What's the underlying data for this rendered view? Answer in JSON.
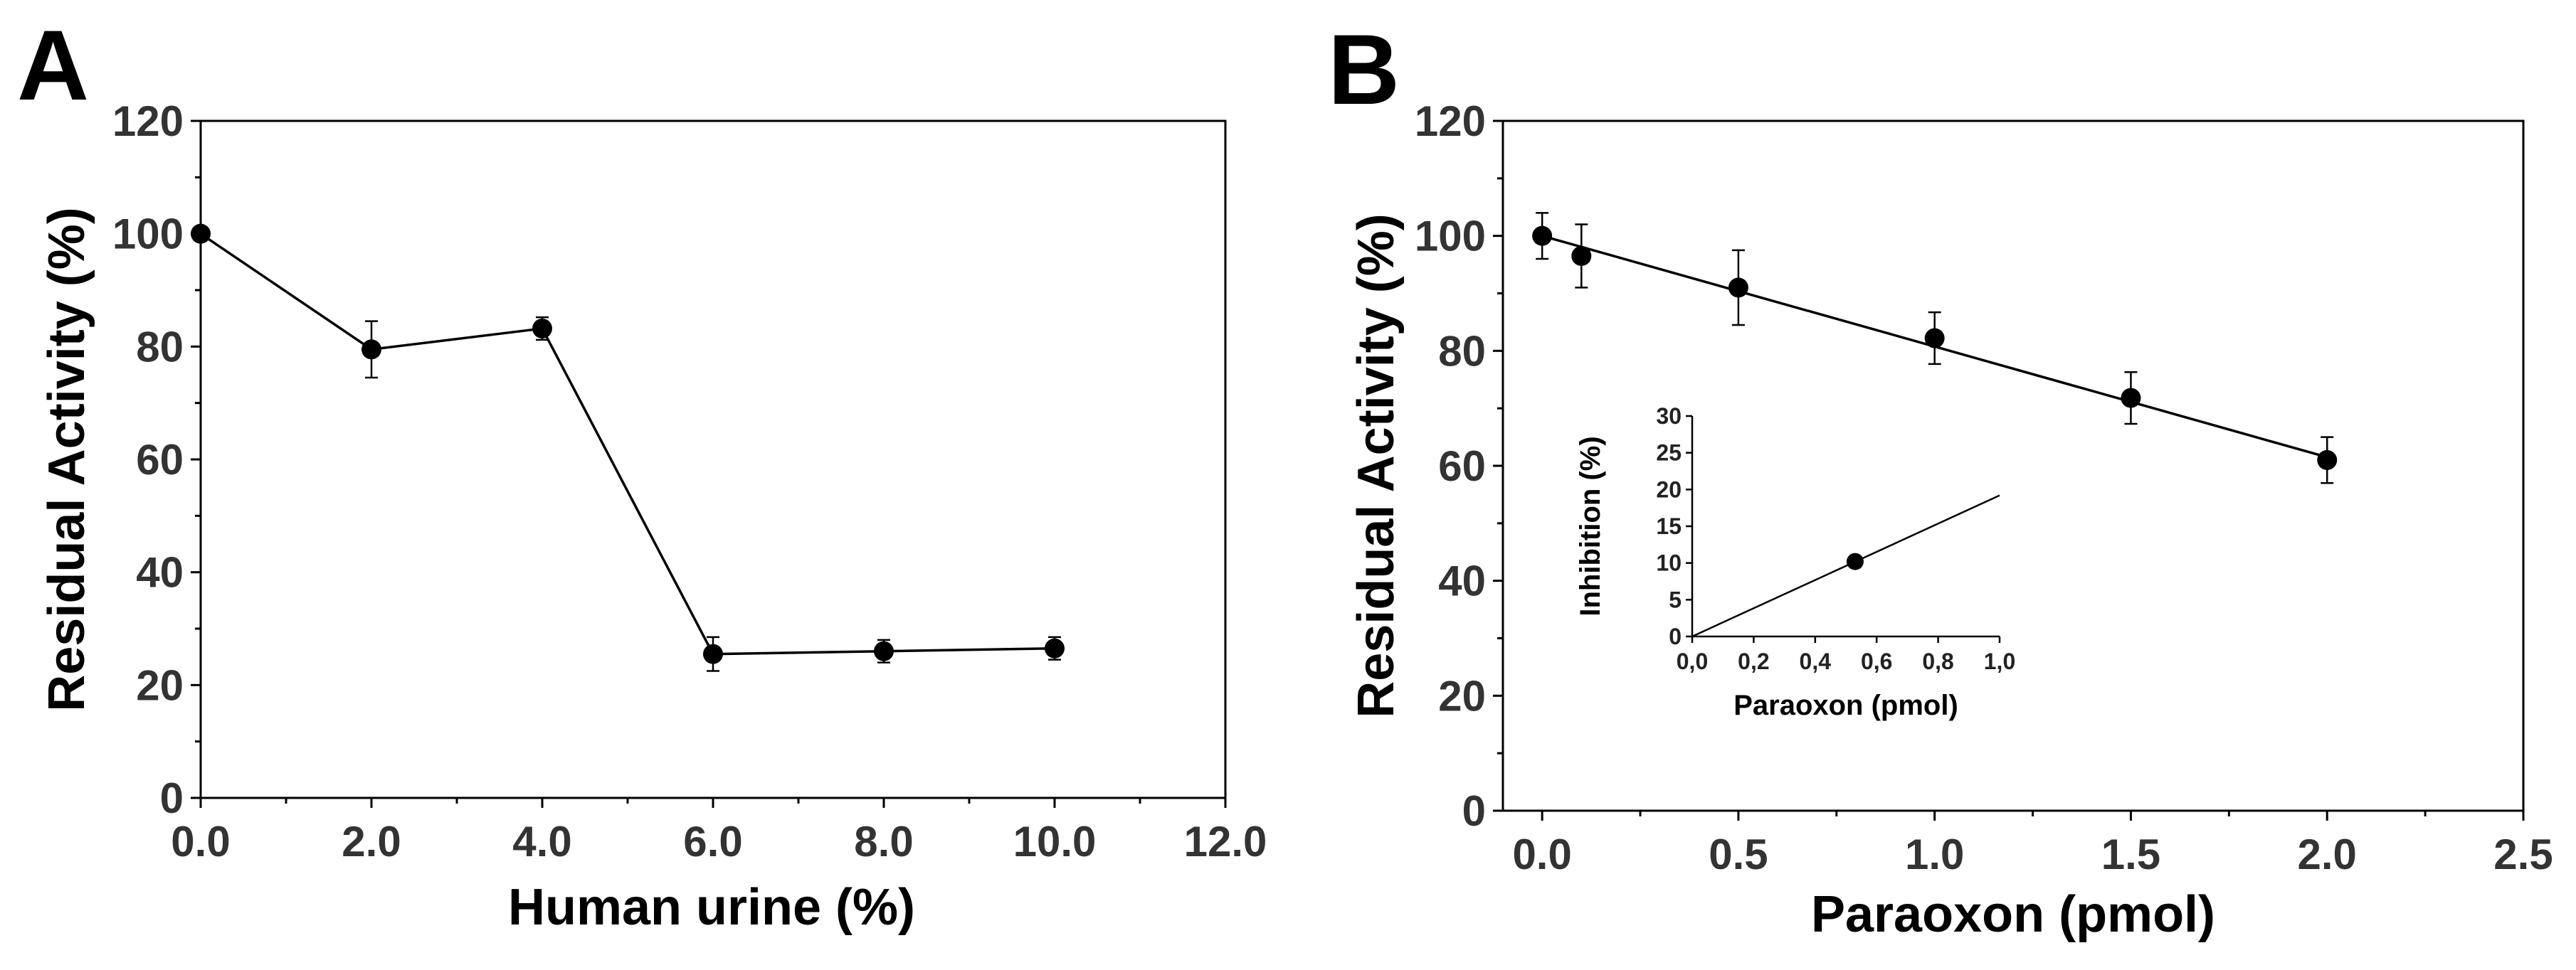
{
  "chart_data": [
    {
      "panel": "A",
      "type": "line",
      "title": "",
      "xlabel": "Human urine (%)",
      "ylabel": "Residual Activity (%)",
      "xlim": [
        0,
        12
      ],
      "ylim": [
        0,
        120
      ],
      "xticks": [
        0,
        2,
        4,
        6,
        8,
        10,
        12
      ],
      "xtick_labels": [
        "0.0",
        "2.0",
        "4.0",
        "6.0",
        "8.0",
        "10.0",
        "12.0"
      ],
      "yticks": [
        0,
        20,
        40,
        60,
        80,
        100,
        120
      ],
      "ytick_labels": [
        "0",
        "20",
        "40",
        "60",
        "80",
        "100",
        "120"
      ],
      "grid": false,
      "series": [
        {
          "name": "Residual Activity",
          "x": [
            0,
            2,
            4,
            6,
            8,
            10
          ],
          "y": [
            100,
            79.5,
            83.2,
            25.5,
            26.0,
            26.5
          ],
          "error": [
            0,
            5.0,
            2.0,
            3.0,
            2.0,
            2.0
          ]
        }
      ]
    },
    {
      "panel": "B",
      "type": "scatter",
      "title": "",
      "xlabel": "Paraoxon (pmol)",
      "ylabel": "Residual Activity (%)",
      "xlim": [
        -0.1,
        2.5
      ],
      "ylim": [
        0,
        120
      ],
      "xticks": [
        0,
        0.5,
        1.0,
        1.5,
        2.0,
        2.5
      ],
      "xtick_labels": [
        "0.0",
        "0.5",
        "1.0",
        "1.5",
        "2.0",
        "2.5"
      ],
      "yticks": [
        0,
        20,
        40,
        60,
        80,
        100,
        120
      ],
      "ytick_labels": [
        "0",
        "20",
        "40",
        "60",
        "80",
        "100",
        "120"
      ],
      "grid": false,
      "series": [
        {
          "name": "Residual Activity",
          "x": [
            0,
            0.1,
            0.5,
            1.0,
            1.5,
            2.0
          ],
          "y": [
            100,
            96.5,
            91.0,
            82.2,
            71.8,
            61.0
          ],
          "error": [
            4.0,
            5.5,
            6.5,
            4.5,
            4.5,
            4.0
          ]
        }
      ],
      "fit_line": {
        "x": [
          0,
          2.0
        ],
        "y": [
          100,
          61.5
        ]
      },
      "inset": {
        "type": "scatter",
        "xlabel": "Paraoxon (pmol)",
        "ylabel": "Inhibition (%)",
        "xlim": [
          0,
          1.0
        ],
        "ylim": [
          0,
          30
        ],
        "xticks": [
          0,
          0.2,
          0.4,
          0.6,
          0.8,
          1.0
        ],
        "xtick_labels": [
          "0,0",
          "0,2",
          "0,4",
          "0,6",
          "0,8",
          "1,0"
        ],
        "yticks": [
          0,
          5,
          10,
          15,
          20,
          25,
          30
        ],
        "ytick_labels": [
          "0",
          "5",
          "10",
          "15",
          "20",
          "25",
          "30"
        ],
        "points": {
          "x": [
            0.53
          ],
          "y": [
            10.2
          ]
        },
        "fit_line": {
          "x": [
            0,
            1.0
          ],
          "y": [
            0,
            19.2
          ]
        }
      }
    }
  ]
}
